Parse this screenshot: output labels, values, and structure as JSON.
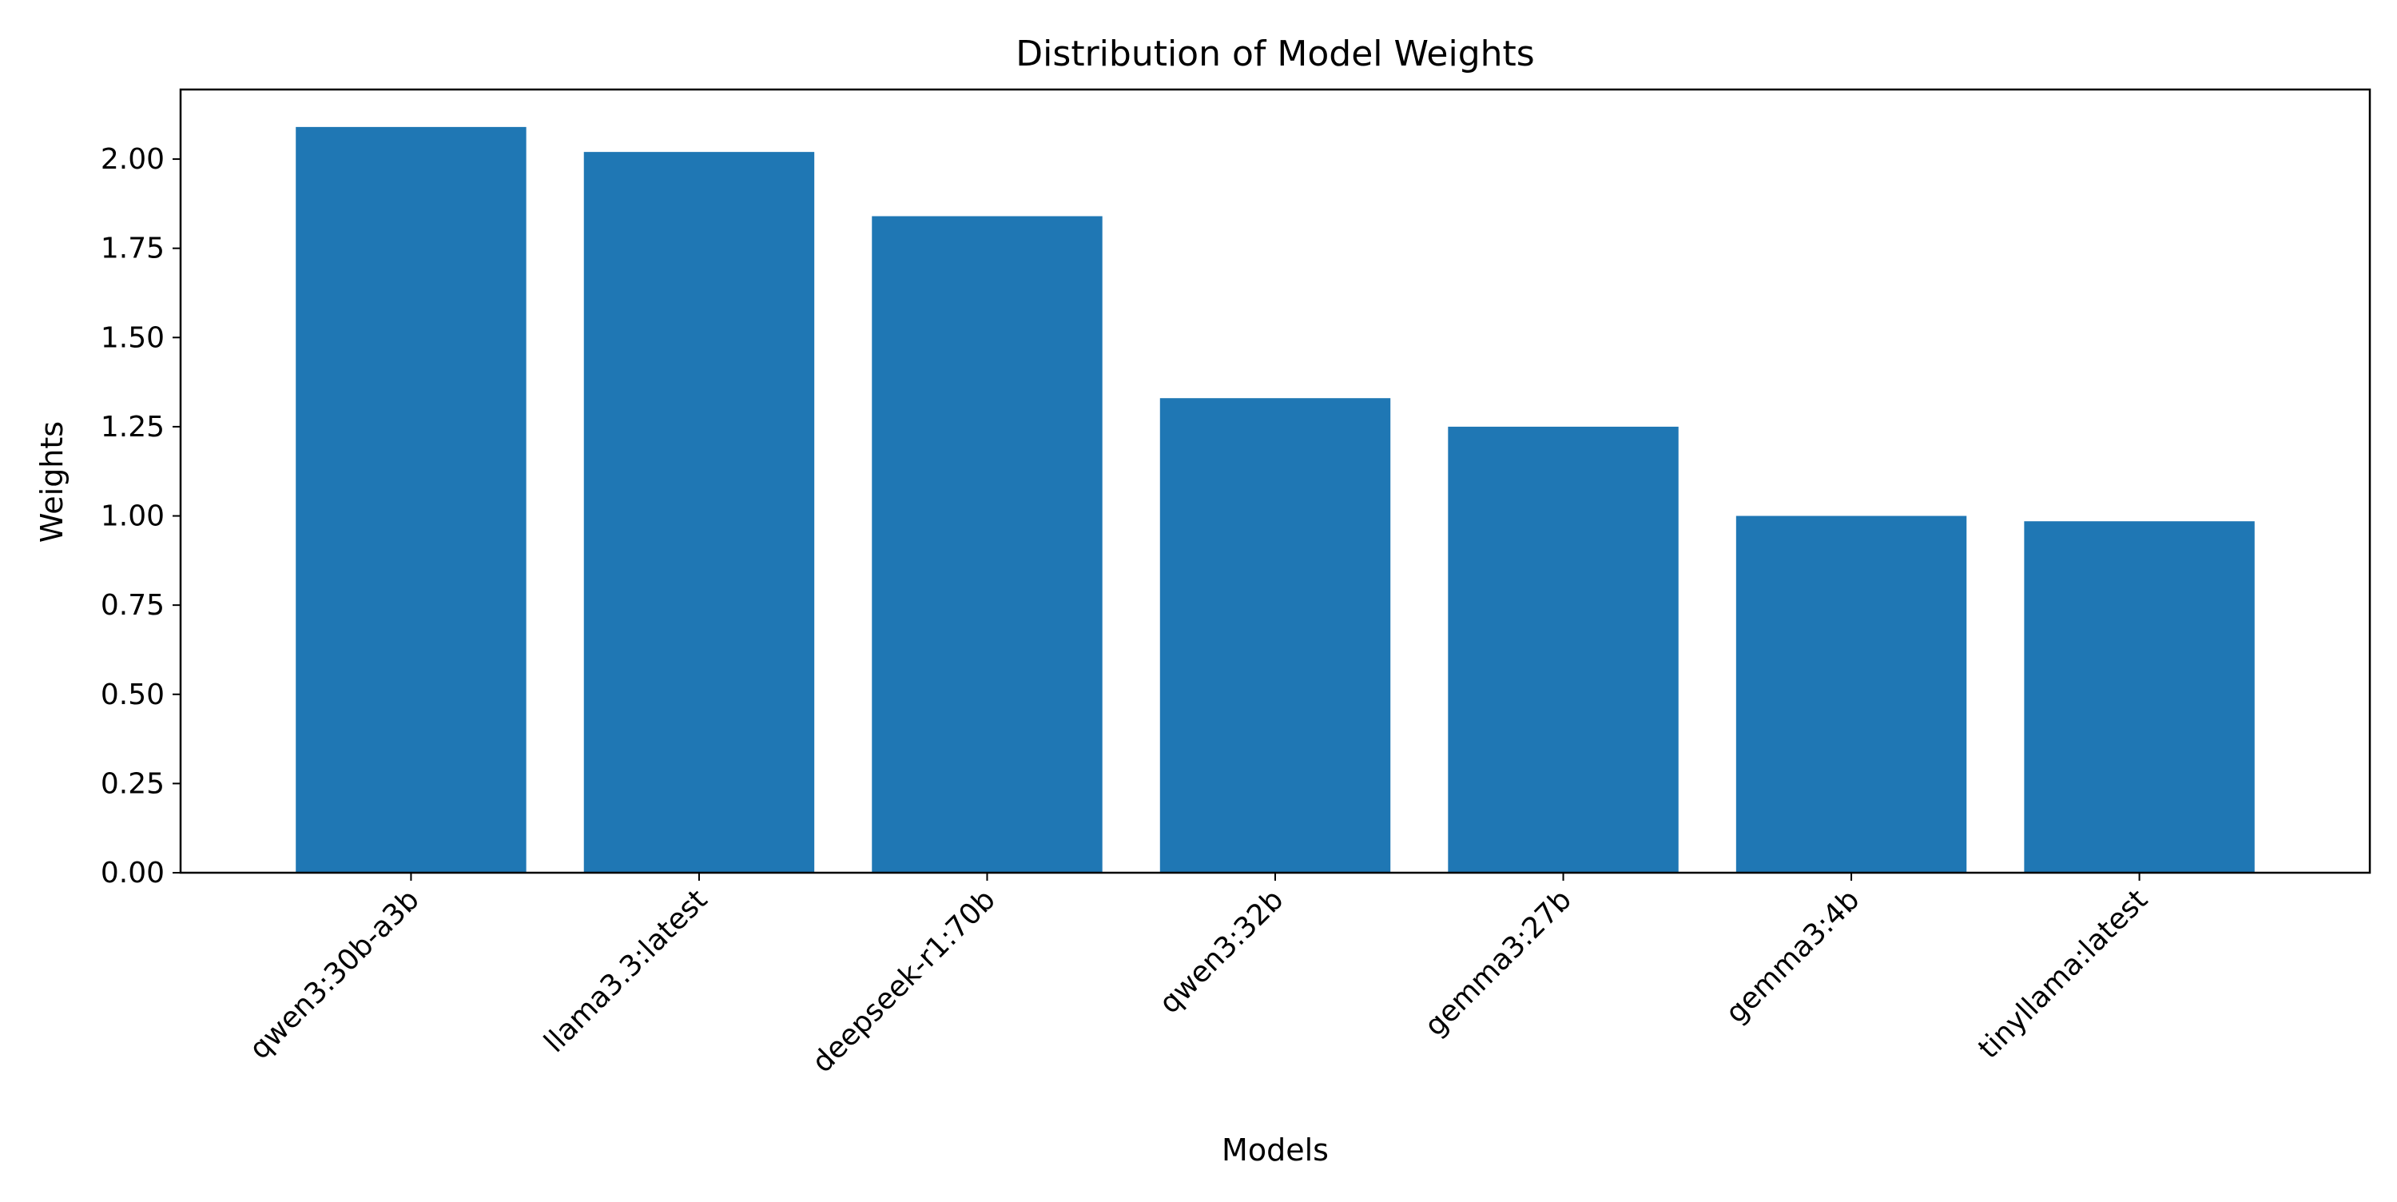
{
  "chart_data": {
    "type": "bar",
    "title": "Distribution of Model Weights",
    "xlabel": "Models",
    "ylabel": "Weights",
    "categories": [
      "qwen3:30b-a3b",
      "llama3.3:latest",
      "deepseek-r1:70b",
      "qwen3:32b",
      "gemma3:27b",
      "gemma3:4b",
      "tinyllama:latest"
    ],
    "values": [
      2.09,
      2.02,
      1.84,
      1.33,
      1.25,
      1.0,
      0.985
    ],
    "ylim": [
      0,
      2.195
    ],
    "yticks": [
      "0.00",
      "0.25",
      "0.50",
      "0.75",
      "1.00",
      "1.25",
      "1.50",
      "1.75",
      "2.00"
    ],
    "ytick_values": [
      0,
      0.25,
      0.5,
      0.75,
      1.0,
      1.25,
      1.5,
      1.75,
      2.0
    ],
    "bar_color": "#1f77b4",
    "grid": false,
    "legend": "none"
  }
}
